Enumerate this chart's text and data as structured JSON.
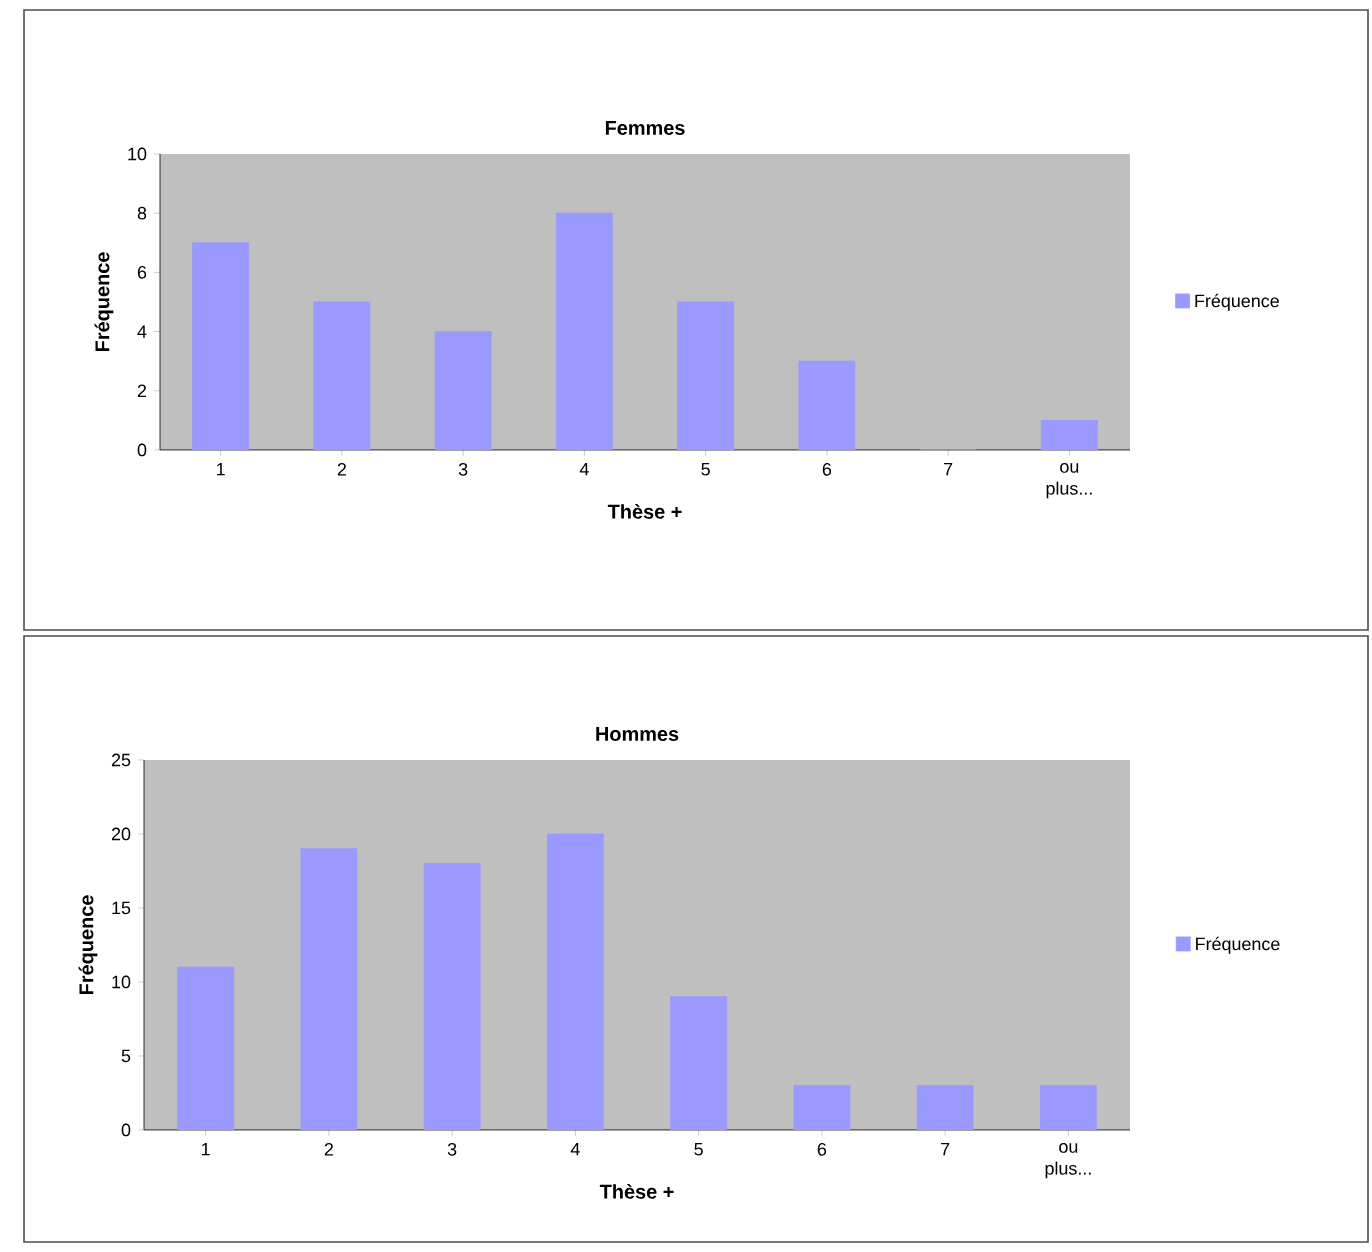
{
  "chart_data": [
    {
      "type": "bar",
      "title": "Femmes",
      "xlabel": "Thèse +",
      "ylabel": "Fréquence",
      "categories": [
        "1",
        "2",
        "3",
        "4",
        "5",
        "6",
        "7",
        "ou plus..."
      ],
      "ylim": [
        0,
        10
      ],
      "yticks": [
        0,
        2,
        4,
        6,
        8,
        10
      ],
      "legend": "right",
      "series": [
        {
          "name": "Fréquence",
          "color": "#9999ff",
          "values": [
            7,
            5,
            4,
            8,
            5,
            3,
            0,
            1
          ]
        }
      ]
    },
    {
      "type": "bar",
      "title": "Hommes",
      "xlabel": "Thèse +",
      "ylabel": "Fréquence",
      "categories": [
        "1",
        "2",
        "3",
        "4",
        "5",
        "6",
        "7",
        "ou plus..."
      ],
      "ylim": [
        0,
        25
      ],
      "yticks": [
        0,
        5,
        10,
        15,
        20,
        25
      ],
      "legend": "right",
      "series": [
        {
          "name": "Fréquence",
          "color": "#9999ff",
          "values": [
            11,
            19,
            18,
            20,
            9,
            3,
            3,
            3
          ]
        }
      ]
    }
  ]
}
